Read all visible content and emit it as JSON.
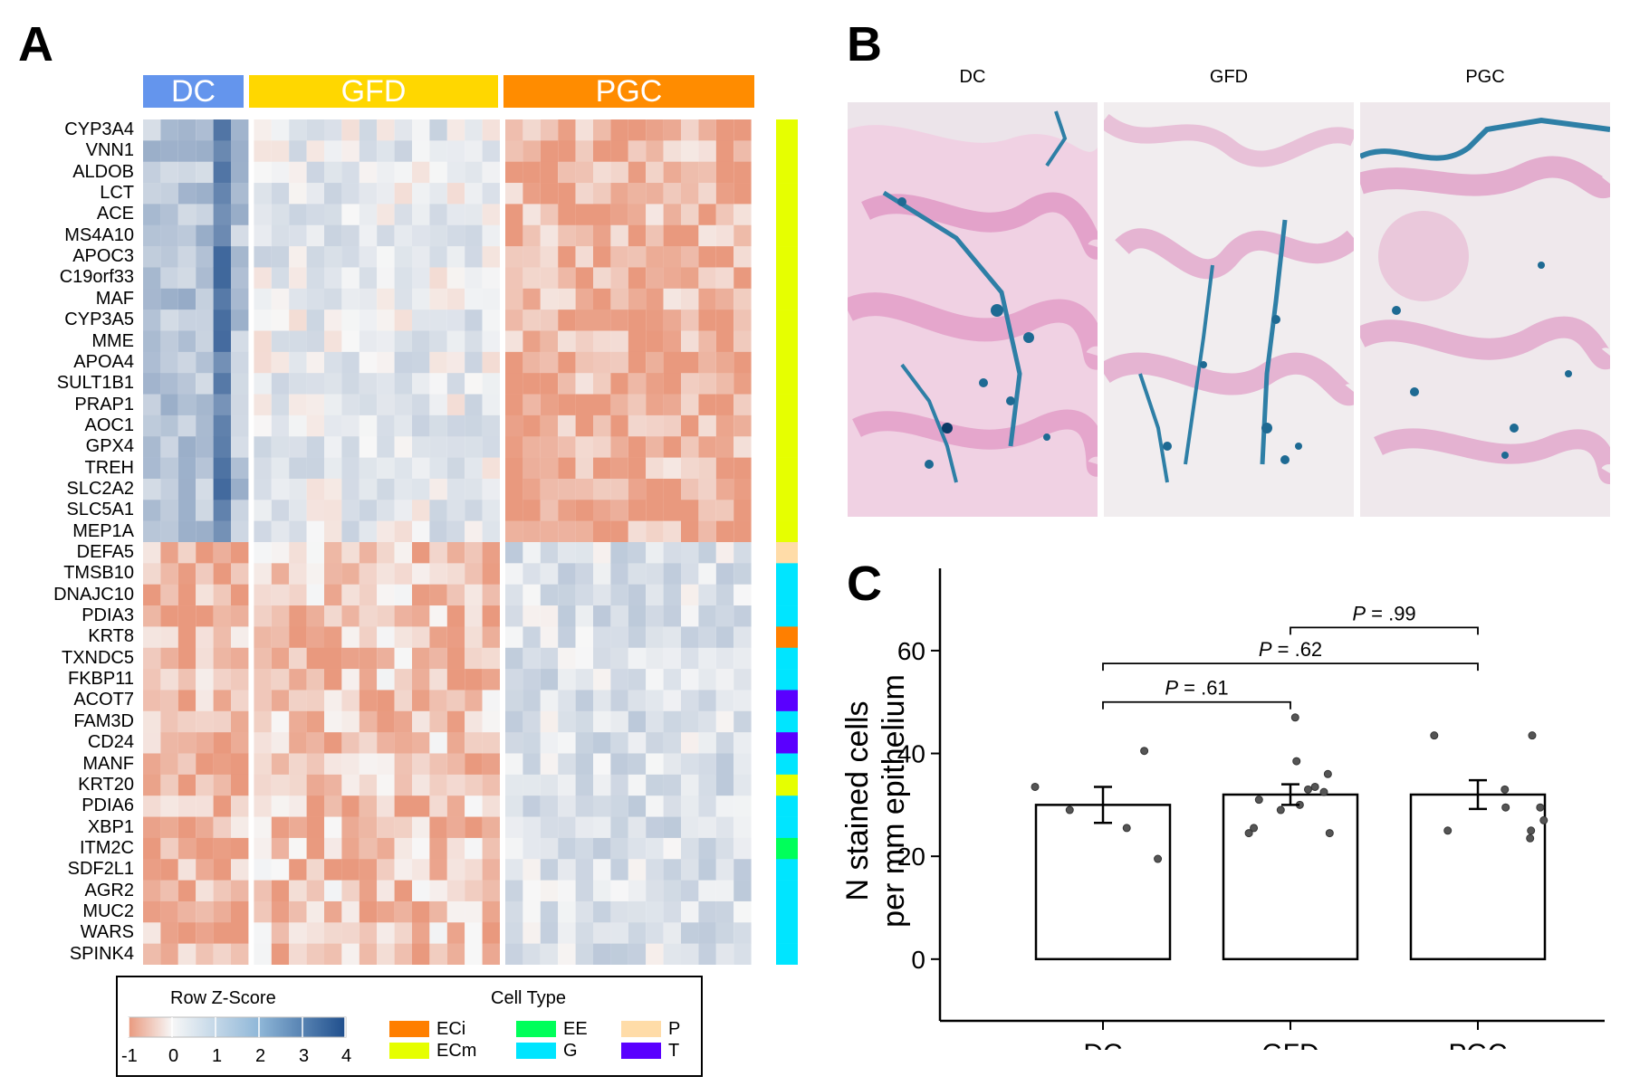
{
  "panels": {
    "a": "A",
    "b": "B",
    "c": "C"
  },
  "heatmap": {
    "groups": [
      {
        "label": "DC",
        "color": "#6495ED",
        "n": 6
      },
      {
        "label": "GFD",
        "color": "#FFD700",
        "n": 14
      },
      {
        "label": "PGC",
        "color": "#FF8C00",
        "n": 14
      }
    ],
    "genes": [
      "CYP3A4",
      "VNN1",
      "ALDOB",
      "LCT",
      "ACE",
      "MS4A10",
      "APOC3",
      "C19orf33",
      "MAF",
      "CYP3A5",
      "MME",
      "APOA4",
      "SULT1B1",
      "PRAP1",
      "AOC1",
      "GPX4",
      "TREH",
      "SLC2A2",
      "SLC5A1",
      "MEP1A",
      "DEFA5",
      "TMSB10",
      "DNAJC10",
      "PDIA3",
      "KRT8",
      "TXNDC5",
      "FKBP11",
      "ACOT7",
      "FAM3D",
      "CD24",
      "MANF",
      "KRT20",
      "PDIA6",
      "XBP1",
      "ITM2C",
      "SDF2L1",
      "AGR2",
      "MUC2",
      "WARS",
      "SPINK4"
    ],
    "gene_cell_types": [
      "ECm",
      "ECm",
      "ECm",
      "ECm",
      "ECm",
      "ECm",
      "ECm",
      "ECm",
      "ECm",
      "ECm",
      "ECm",
      "ECm",
      "ECm",
      "ECm",
      "ECm",
      "ECm",
      "ECm",
      "ECm",
      "ECm",
      "ECm",
      "P",
      "G",
      "G",
      "G",
      "ECi",
      "G",
      "G",
      "T",
      "G",
      "T",
      "G",
      "ECm",
      "G",
      "G",
      "EE",
      "G",
      "G",
      "G",
      "G",
      "G"
    ],
    "legend": {
      "zscore_title": "Row Z-Score",
      "zscore_ticks": [
        "-1",
        "0",
        "1",
        "2",
        "3",
        "4"
      ],
      "celltype_title": "Cell Type",
      "cell_types": [
        {
          "label": "ECi",
          "color": "#FF7F00"
        },
        {
          "label": "ECm",
          "color": "#E6FF00"
        },
        {
          "label": "EE",
          "color": "#00FF5A"
        },
        {
          "label": "G",
          "color": "#00E5FF"
        },
        {
          "label": "P",
          "color": "#FFDCA8"
        },
        {
          "label": "T",
          "color": "#5A00FF"
        }
      ]
    },
    "colors": {
      "low": "#E9997E",
      "mid": "#F7F7F7",
      "high": "#1F4E8C",
      "max": "#6B0010"
    }
  },
  "images": {
    "labels": [
      "DC",
      "GFD",
      "PGC"
    ]
  },
  "chart_data": {
    "type": "bar",
    "categories": [
      "DC",
      "GFD",
      "PGC"
    ],
    "values": [
      30,
      32,
      32
    ],
    "errors": [
      3.5,
      2,
      2.8
    ],
    "points": [
      [
        33.5,
        29,
        40.5,
        25.5,
        19.5
      ],
      [
        30,
        38.5,
        24.5,
        24.5,
        25.5,
        31,
        33.5,
        32.5,
        29,
        36,
        47,
        33
      ],
      [
        27,
        43.5,
        43.5,
        25,
        25,
        33,
        29.5,
        29.5,
        23.5
      ]
    ],
    "title": "",
    "xlabel": "",
    "ylabel": "N stained cells per mm epithelium",
    "ylabel_lines": [
      "N stained cells",
      "per mm epithelium"
    ],
    "ylim": [
      -12,
      76
    ],
    "yticks": [
      0,
      20,
      40,
      60
    ],
    "comparisons": [
      {
        "from": "DC",
        "to": "GFD",
        "label": "P = .61",
        "p_letter": "P",
        "p_value": " = .61"
      },
      {
        "from": "DC",
        "to": "PGC",
        "label": "P = .62",
        "p_letter": "P",
        "p_value": " = .62"
      },
      {
        "from": "GFD",
        "to": "PGC",
        "label": "P = .99",
        "p_letter": "P",
        "p_value": " = .99"
      }
    ]
  }
}
